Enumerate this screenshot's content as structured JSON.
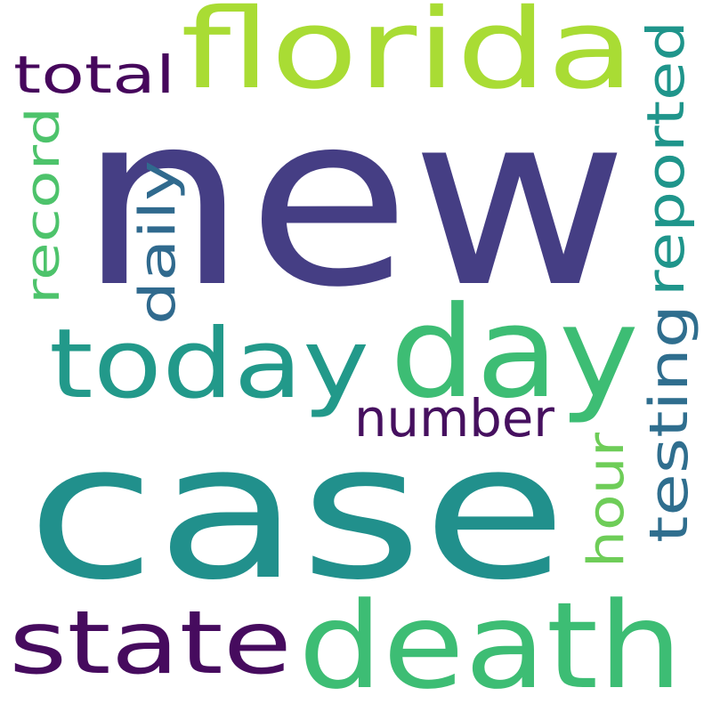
{
  "words": [
    {
      "id": "new",
      "text": "new",
      "color": "#453e84"
    },
    {
      "id": "florida",
      "text": "florida",
      "color": "#a9dc34"
    },
    {
      "id": "case",
      "text": "case",
      "color": "#21908c"
    },
    {
      "id": "day",
      "text": "day",
      "color": "#3dbd74"
    },
    {
      "id": "death",
      "text": "death",
      "color": "#3dbd74"
    },
    {
      "id": "today",
      "text": "today",
      "color": "#22998a"
    },
    {
      "id": "state",
      "text": "state",
      "color": "#460b5e"
    },
    {
      "id": "total",
      "text": "total",
      "color": "#46075c"
    },
    {
      "id": "record",
      "text": "record",
      "color": "#4dc36b"
    },
    {
      "id": "daily",
      "text": "daily",
      "color": "#306a8e"
    },
    {
      "id": "reported",
      "text": "reported",
      "color": "#1f958b"
    },
    {
      "id": "testing",
      "text": "testing",
      "color": "#2f6e8e"
    },
    {
      "id": "number",
      "text": "number",
      "color": "#46105f"
    },
    {
      "id": "hour",
      "text": "hour",
      "color": "#6ecd58"
    }
  ]
}
